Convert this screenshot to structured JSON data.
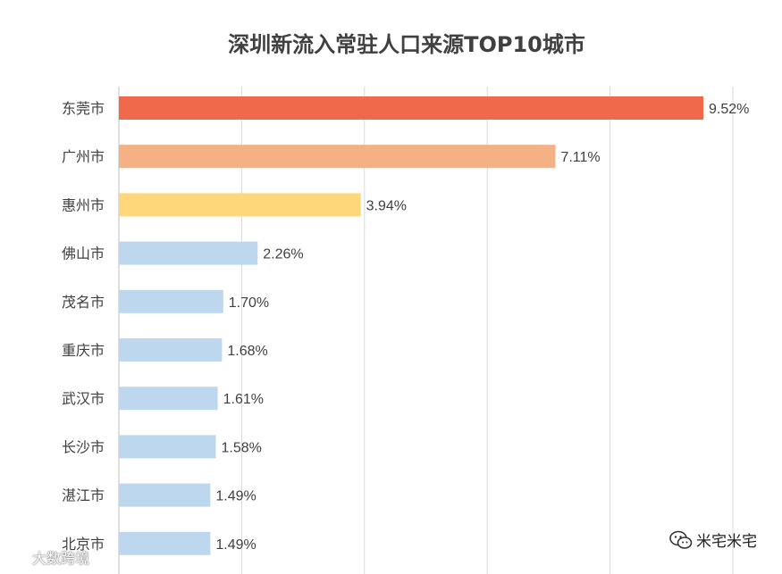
{
  "chart_data": {
    "type": "bar",
    "orientation": "horizontal",
    "title": "深圳新流入常驻人口来源TOP10城市",
    "categories": [
      "东莞市",
      "广州市",
      "惠州市",
      "佛山市",
      "茂名市",
      "重庆市",
      "武汉市",
      "长沙市",
      "湛江市",
      "北京市"
    ],
    "values": [
      9.52,
      7.11,
      3.94,
      2.26,
      1.7,
      1.68,
      1.61,
      1.58,
      1.49,
      1.49
    ],
    "value_labels": [
      "9.52%",
      "7.11%",
      "3.94%",
      "2.26%",
      "1.70%",
      "1.68%",
      "1.61%",
      "1.58%",
      "1.49%",
      "1.49%"
    ],
    "colors": [
      "#f0694b",
      "#f4b183",
      "#fdd77a",
      "#bdd7ee",
      "#bdd7ee",
      "#bdd7ee",
      "#bdd7ee",
      "#bdd7ee",
      "#bdd7ee",
      "#bdd7ee"
    ],
    "xlim": [
      0,
      10
    ],
    "grid": true,
    "legend": "none"
  },
  "watermarks": {
    "right": "米宅米宅",
    "left": "大数跨境",
    "right_icon": "wechat-icon",
    "left_icon": "logo-icon"
  }
}
